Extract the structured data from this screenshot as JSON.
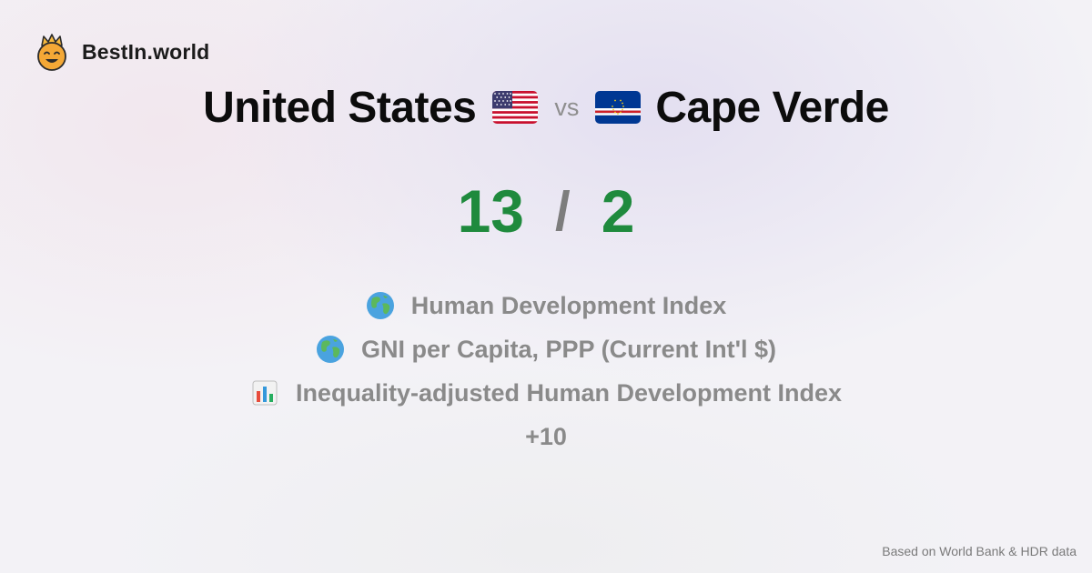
{
  "brand": {
    "name": "BestIn.world",
    "logo_icon": "smiling-crowned-face-icon",
    "colors": {
      "face": "#f4a836",
      "crown": "#f7b93d"
    }
  },
  "comparison": {
    "left_country": "United States",
    "left_flag_icon": "us-flag-icon",
    "vs_label": "vs",
    "right_country": "Cape Verde",
    "right_flag_icon": "cape-verde-flag-icon"
  },
  "score": {
    "left": "13",
    "separator": "/",
    "right": "2",
    "color": "#1f8a3d"
  },
  "metrics": [
    {
      "icon": "globe-icon",
      "label": "Human Development Index"
    },
    {
      "icon": "globe-icon",
      "label": "GNI per Capita, PPP (Current Int'l $)"
    },
    {
      "icon": "bar-chart-icon",
      "label": "Inequality-adjusted Human Development Index"
    }
  ],
  "more_label": "+10",
  "footer": {
    "source": "Based on World Bank & HDR data"
  }
}
